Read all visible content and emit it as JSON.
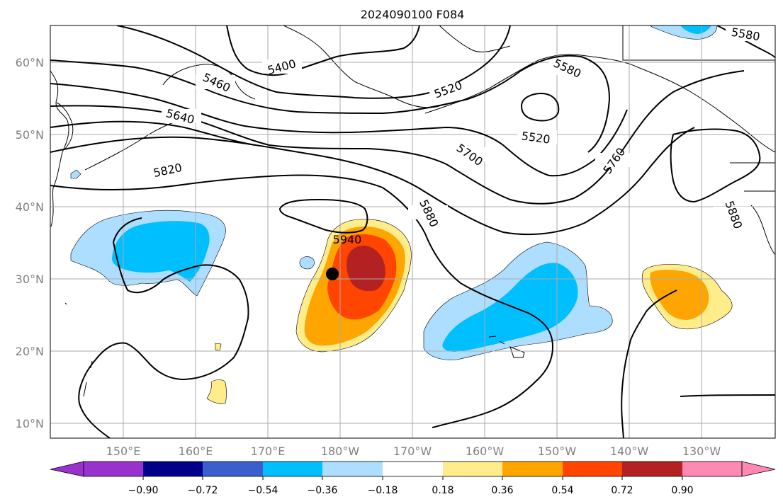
{
  "title": "2024090100 F084",
  "lat_ticks": [
    "60°N",
    "50°N",
    "40°N",
    "30°N",
    "20°N",
    "10°N"
  ],
  "lon_ticks": [
    "150°E",
    "160°E",
    "170°E",
    "180°W",
    "170°W",
    "160°W",
    "150°W",
    "140°W",
    "130°W"
  ],
  "colorbar": {
    "ticks": [
      "−0.90",
      "−0.72",
      "−0.54",
      "−0.36",
      "−0.18",
      "0.18",
      "0.36",
      "0.54",
      "0.72",
      "0.90"
    ],
    "colors": [
      "#9932CC",
      "#00008B",
      "#3A5FCD",
      "#00BFFF",
      "#ADDEFF",
      "#FFFFFF",
      "#FFEC8B",
      "#FFA500",
      "#FF4500",
      "#B22222",
      "#FF89B3"
    ]
  },
  "contour_labels": {
    "c5400": "5400",
    "c5460": "5460",
    "c5520a": "5520",
    "c5520b": "5520",
    "c5580a": "5580",
    "c5580b": "5580",
    "c5640": "5640",
    "c5700": "5700",
    "c5760": "5760",
    "c5820": "5820",
    "c5880a": "5880",
    "c5880b": "5880",
    "c5940": "5940"
  },
  "marker": {
    "lat": 31,
    "lon": "181°E"
  }
}
